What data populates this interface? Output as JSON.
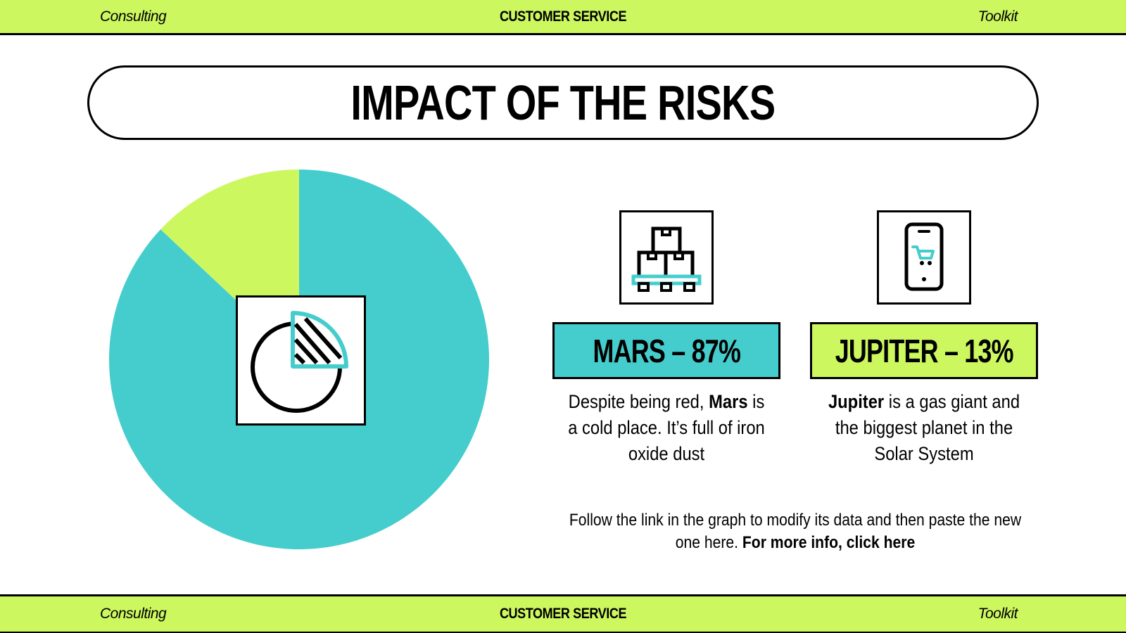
{
  "header": {
    "left": "Consulting",
    "center": "CUSTOMER SERVICE",
    "right": "Toolkit"
  },
  "footer": {
    "left": "Consulting",
    "center": "CUSTOMER SERVICE",
    "right": "Toolkit"
  },
  "title": "IMPACT OF THE RISKS",
  "stats": [
    {
      "label": "MARS – 87%",
      "name": "Mars",
      "description_rest": " is a cold place. It’s full of iron oxide dust",
      "description_lead": "Despite being red, "
    },
    {
      "label": "JUPITER – 13%",
      "name": "Jupiter",
      "description_rest": " is a gas giant and the biggest planet in the Solar System"
    }
  ],
  "note": {
    "text": "Follow the link in the graph to modify its data and then paste the new one here. ",
    "link": "For more info, click here"
  },
  "colors": {
    "lime": "#ccf75f",
    "teal": "#45cdcd",
    "black": "#000000"
  },
  "icons": {
    "pie": "pie-chart-icon",
    "boxes": "boxes-pallet-icon",
    "phone": "mobile-cart-icon"
  },
  "chart_data": {
    "type": "pie",
    "categories": [
      "Mars",
      "Jupiter"
    ],
    "values": [
      87,
      13
    ],
    "colors": [
      "#45cdcd",
      "#ccf75f"
    ],
    "start": "top",
    "direction": "clockwise"
  }
}
